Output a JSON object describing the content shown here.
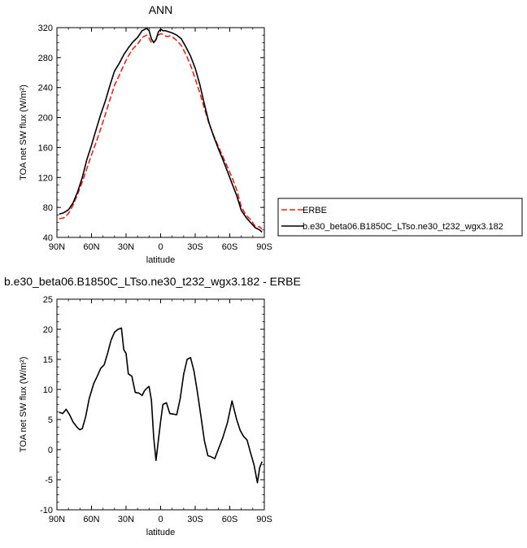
{
  "chart_data": [
    {
      "type": "line",
      "title": "ANN",
      "xlabel": "latitude",
      "ylabel": "TOA net SW flux (W/m²)",
      "xlim": [
        90,
        -90
      ],
      "ylim": [
        40,
        320
      ],
      "xticks": [
        90,
        60,
        30,
        0,
        -30,
        -60,
        -90
      ],
      "xtick_labels": [
        "90N",
        "60N",
        "30N",
        "0",
        "30S",
        "60S",
        "90S"
      ],
      "yticks": [
        40,
        80,
        120,
        160,
        200,
        240,
        280,
        320
      ],
      "ytick_labels": [
        "40",
        "80",
        "120",
        "160",
        "200",
        "240",
        "280",
        "320"
      ],
      "legend_position": "right",
      "series": [
        {
          "name": "ERBE",
          "color": "#e8241c",
          "dash": "dashed",
          "x": [
            88,
            84,
            80,
            76,
            72,
            68,
            64,
            60,
            56,
            52,
            48,
            44,
            40,
            36,
            32,
            28,
            24,
            20,
            16,
            12,
            10,
            8,
            6,
            4,
            2,
            0,
            -2,
            -4,
            -6,
            -8,
            -10,
            -14,
            -18,
            -22,
            -26,
            -30,
            -34,
            -38,
            -42,
            -46,
            -50,
            -54,
            -58,
            -62,
            -66,
            -70,
            -74,
            -78,
            -82,
            -86,
            -88
          ],
          "y": [
            65,
            66,
            72,
            83,
            98,
            114,
            132,
            150,
            167,
            185,
            204,
            224,
            243,
            256,
            270,
            282,
            292,
            298,
            307,
            310,
            306,
            300,
            300,
            304,
            310,
            312,
            311,
            309,
            308,
            309,
            308,
            303,
            296,
            284,
            270,
            252,
            233,
            212,
            192,
            176,
            162,
            148,
            134,
            120,
            104,
            81,
            70,
            64,
            55,
            54,
            51
          ]
        },
        {
          "name": "b.e30_beta06.B1850C_LTso.ne30_t232_wgx3.182",
          "color": "#000000",
          "dash": "solid",
          "x": [
            88,
            84,
            80,
            76,
            72,
            68,
            64,
            60,
            56,
            52,
            48,
            44,
            40,
            36,
            32,
            28,
            24,
            20,
            16,
            12,
            10,
            8,
            6,
            4,
            2,
            0,
            -2,
            -4,
            -6,
            -8,
            -10,
            -14,
            -18,
            -22,
            -26,
            -30,
            -34,
            -38,
            -42,
            -46,
            -50,
            -54,
            -58,
            -62,
            -66,
            -70,
            -74,
            -78,
            -82,
            -86,
            -88
          ],
          "y": [
            71,
            73,
            77,
            86,
            101,
            120,
            144,
            163,
            184,
            204,
            222,
            243,
            262,
            272,
            284,
            293,
            301,
            307,
            316,
            319,
            316,
            305,
            300,
            304,
            314,
            318,
            316,
            316,
            315,
            314,
            313,
            310,
            305,
            294,
            282,
            266,
            244,
            218,
            193,
            175,
            159,
            144,
            128,
            112,
            96,
            76,
            67,
            60,
            53,
            50,
            47
          ]
        }
      ]
    },
    {
      "type": "line",
      "title": "b.e30_beta06.B1850C_LTso.ne30_t232_wgx3.182 - ERBE",
      "xlabel": "latitude",
      "ylabel": "TOA net SW flux (W/m²)",
      "xlim": [
        90,
        -90
      ],
      "ylim": [
        -10,
        25
      ],
      "xticks": [
        90,
        60,
        30,
        0,
        -30,
        -60,
        -90
      ],
      "xtick_labels": [
        "90N",
        "60N",
        "30N",
        "0",
        "30S",
        "60S",
        "90S"
      ],
      "yticks": [
        -10,
        -5,
        0,
        5,
        10,
        15,
        20,
        25
      ],
      "ytick_labels": [
        "-10",
        "-5",
        "0",
        "5",
        "10",
        "15",
        "20",
        "25"
      ],
      "series": [
        {
          "color": "#000000",
          "dash": "solid",
          "x": [
            88,
            85,
            82,
            79,
            76,
            72,
            70,
            68,
            65,
            62,
            58,
            55,
            52,
            49,
            46,
            43,
            40,
            37,
            34,
            32,
            30,
            28,
            25,
            22,
            19,
            16,
            14,
            12,
            10,
            8,
            6,
            4,
            2,
            0,
            -2,
            -5,
            -8,
            -11,
            -14,
            -17,
            -20,
            -23,
            -26,
            -29,
            -32,
            -35,
            -38,
            -41,
            -44,
            -47,
            -50,
            -54,
            -58,
            -62,
            -66,
            -69,
            -72,
            -75,
            -78,
            -81,
            -84,
            -86,
            -88
          ],
          "y": [
            6.2,
            6.0,
            6.7,
            5.8,
            4.6,
            3.6,
            3.3,
            3.5,
            5.5,
            8.5,
            11.0,
            12.2,
            13.5,
            14.1,
            16.0,
            18.2,
            19.5,
            20.0,
            20.2,
            16.6,
            16.0,
            12.6,
            12.2,
            9.5,
            9.4,
            9.0,
            9.8,
            10.2,
            10.5,
            8.2,
            2.0,
            -1.8,
            1.5,
            4.7,
            7.5,
            7.8,
            6.0,
            5.9,
            5.8,
            8.5,
            12.5,
            15.0,
            15.3,
            13.0,
            9.5,
            5.5,
            1.5,
            -1.0,
            -1.2,
            -1.5,
            0.0,
            2.0,
            4.5,
            8.1,
            5.0,
            3.2,
            2.2,
            1.6,
            -0.5,
            -2.5,
            -5.5,
            -3.0,
            -2.0
          ]
        }
      ]
    }
  ]
}
